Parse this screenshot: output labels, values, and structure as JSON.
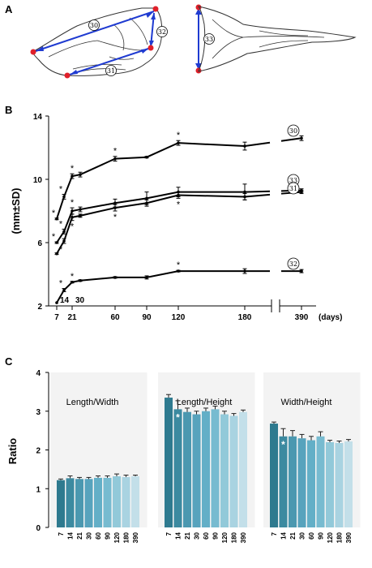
{
  "panels": {
    "a": "A",
    "b": "B",
    "c": "C"
  },
  "diagram": {
    "labels": [
      "30",
      "31",
      "32",
      "33"
    ]
  },
  "chart_data": [
    {
      "type": "line",
      "ylabel": "(mm±SD)",
      "ylim": [
        2,
        14
      ],
      "yticks": [
        2,
        6,
        10,
        14
      ],
      "xticks": [
        7,
        21,
        60,
        90,
        120,
        180,
        390
      ],
      "xunit": "(days)",
      "extra_xlabels": [
        "14",
        "30"
      ],
      "series": [
        {
          "name": "30",
          "x": [
            7,
            14,
            21,
            30,
            60,
            90,
            120,
            180,
            390
          ],
          "y": [
            7.5,
            8.9,
            10.2,
            10.3,
            11.3,
            11.4,
            12.3,
            12.1,
            12.6
          ],
          "err": [
            0.05,
            0.15,
            0.15,
            0.15,
            0.15,
            0.05,
            0.15,
            0.25,
            0.15
          ],
          "stars": [
            1,
            1,
            1,
            0,
            1,
            0,
            1,
            0,
            0
          ]
        },
        {
          "name": "33",
          "x": [
            7,
            14,
            21,
            30,
            60,
            90,
            120,
            180,
            390
          ],
          "y": [
            6.0,
            6.7,
            8.0,
            8.1,
            8.5,
            8.8,
            9.2,
            9.2,
            9.3
          ],
          "err": [
            0.05,
            0.15,
            0.2,
            0.15,
            0.25,
            0.4,
            0.3,
            0.5,
            0.1
          ],
          "stars": [
            1,
            1,
            1,
            0,
            0,
            0,
            0,
            0,
            0
          ]
        },
        {
          "name": "31",
          "x": [
            7,
            14,
            21,
            30,
            60,
            90,
            120,
            180,
            390
          ],
          "y": [
            5.3,
            6.1,
            7.6,
            7.7,
            8.2,
            8.5,
            9.0,
            8.9,
            9.2
          ],
          "err": [
            0.05,
            0.15,
            0.2,
            0.1,
            0.2,
            0.2,
            0.2,
            0.2,
            0.1
          ],
          "stars": [
            0,
            1,
            1,
            0,
            1,
            0,
            1,
            0,
            0
          ]
        },
        {
          "name": "32",
          "x": [
            7,
            14,
            21,
            30,
            60,
            90,
            120,
            180,
            390
          ],
          "y": [
            2.2,
            3.0,
            3.5,
            3.6,
            3.8,
            3.8,
            4.2,
            4.2,
            4.2
          ],
          "err": [
            0.02,
            0.1,
            0.05,
            0.05,
            0.05,
            0.1,
            0.05,
            0.15,
            0.1
          ],
          "stars": [
            0,
            1,
            1,
            0,
            0,
            0,
            1,
            0,
            0
          ]
        }
      ]
    },
    {
      "type": "bar",
      "ylabel": "Ratio",
      "ylim": [
        0,
        4
      ],
      "yticks": [
        0,
        1,
        2,
        3,
        4
      ],
      "categories": [
        "7",
        "14",
        "21",
        "30",
        "60",
        "90",
        "120",
        "180",
        "390"
      ],
      "colors": [
        "#2e7a8f",
        "#3c8aa0",
        "#4b98b0",
        "#57a3bd",
        "#63afc7",
        "#77bbd0",
        "#92c9d9",
        "#a9d3e1",
        "#c3dfe9"
      ],
      "groups": [
        {
          "name": "Length/Width",
          "values": [
            1.22,
            1.27,
            1.25,
            1.25,
            1.28,
            1.28,
            1.32,
            1.3,
            1.32
          ],
          "err": [
            0.03,
            0.06,
            0.04,
            0.04,
            0.05,
            0.05,
            0.06,
            0.05,
            0.03
          ],
          "stars": [
            0,
            0,
            0,
            0,
            0,
            0,
            0,
            0,
            0
          ]
        },
        {
          "name": "Length/Height",
          "values": [
            3.35,
            3.05,
            2.98,
            2.92,
            3.0,
            3.05,
            2.92,
            2.88,
            2.98
          ],
          "err": [
            0.08,
            0.22,
            0.1,
            0.08,
            0.08,
            0.08,
            0.08,
            0.06,
            0.05
          ],
          "stars": [
            0,
            1,
            0,
            0,
            0,
            0,
            0,
            0,
            0
          ]
        },
        {
          "name": "Width/Height",
          "values": [
            2.68,
            2.35,
            2.35,
            2.3,
            2.25,
            2.35,
            2.2,
            2.18,
            2.22
          ],
          "err": [
            0.04,
            0.2,
            0.15,
            0.1,
            0.1,
            0.12,
            0.05,
            0.05,
            0.05
          ],
          "stars": [
            0,
            1,
            0,
            0,
            0,
            0,
            0,
            0,
            0
          ]
        }
      ]
    }
  ]
}
